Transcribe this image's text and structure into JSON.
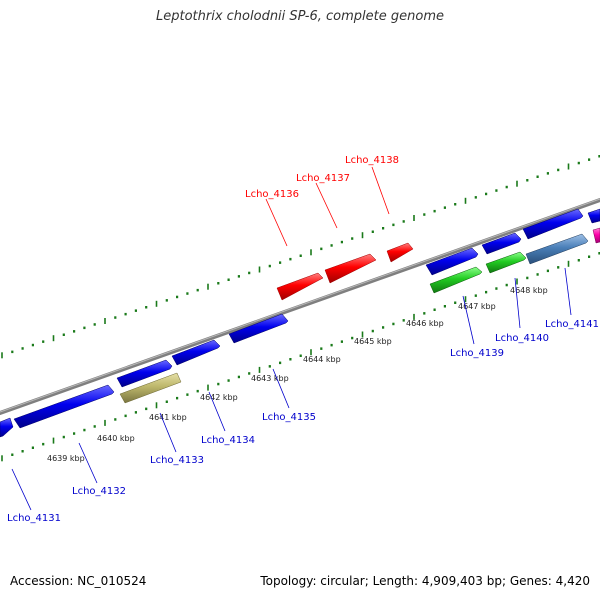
{
  "title": "Leptothrix cholodnii SP-6, complete genome",
  "footer": {
    "accession_label": "Accession:",
    "accession": "NC_010524",
    "topology_label": "Topology: circular;",
    "length_label": "Length: 4,909,403 bp;",
    "genes_label": "Genes: 4,420"
  },
  "kbp_ticks": [
    {
      "label": "4639 kbp"
    },
    {
      "label": "4640 kbp"
    },
    {
      "label": "4641 kbp"
    },
    {
      "label": "4642 kbp"
    },
    {
      "label": "4643 kbp"
    },
    {
      "label": "4644 kbp"
    },
    {
      "label": "4645 kbp"
    },
    {
      "label": "4646 kbp"
    },
    {
      "label": "4647 kbp"
    },
    {
      "label": "4648 kbp"
    }
  ],
  "genes_reverse": [
    {
      "name": "Lcho_4136",
      "color": "#ff0000"
    },
    {
      "name": "Lcho_4137",
      "color": "#ff0000"
    },
    {
      "name": "Lcho_4138",
      "color": "#ff0000"
    }
  ],
  "genes_forward": [
    {
      "name": "Lcho_4131",
      "color": "#0000cc"
    },
    {
      "name": "Lcho_4132",
      "color": "#0000cc"
    },
    {
      "name": "Lcho_4133",
      "color": "#0000cc"
    },
    {
      "name": "Lcho_4134",
      "color": "#0000cc"
    },
    {
      "name": "Lcho_4135",
      "color": "#0000cc"
    },
    {
      "name": "Lcho_4139",
      "color": "#0000cc"
    },
    {
      "name": "Lcho_4140",
      "color": "#0000cc"
    },
    {
      "name": "Lcho_4141",
      "color": "#0000cc"
    }
  ],
  "colors": {
    "backbone": "#888888",
    "tick": "#1a7a1a",
    "cds_blue": "#0000ee",
    "cds_red": "#ff0000",
    "cds_green": "#22cc22",
    "cds_khaki": "#bdb76b",
    "cds_steelblue": "#4a7fb8",
    "cds_magenta": "#ff00aa"
  }
}
